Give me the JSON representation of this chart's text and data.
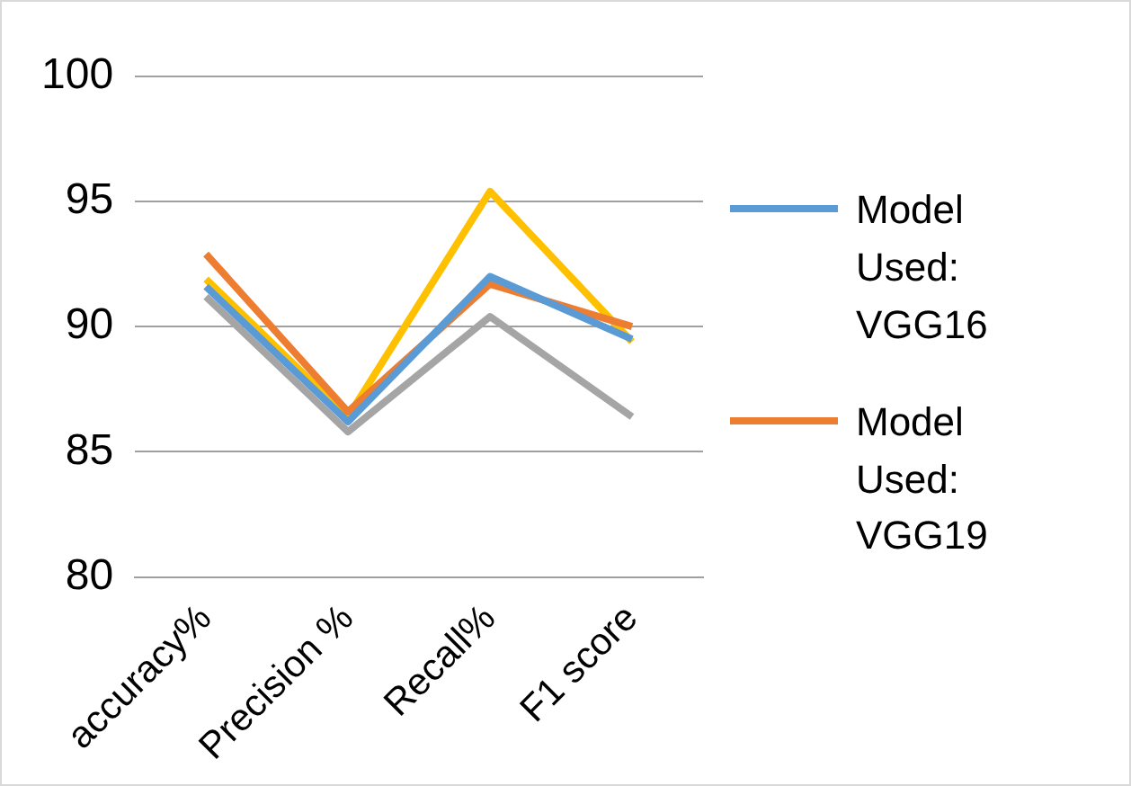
{
  "chart_data": {
    "type": "line",
    "categories": [
      "accuracy%",
      "Precision %",
      "Recall%",
      "F1 score"
    ],
    "series": [
      {
        "name": "Model Used: VGG16",
        "color": "#5b9bd5",
        "values": [
          91.6,
          86.2,
          92.0,
          89.5
        ]
      },
      {
        "name": "Model Used: VGG19",
        "color": "#ed7d31",
        "values": [
          92.9,
          86.6,
          91.7,
          90.0
        ]
      },
      {
        "color": "#a5a5a5",
        "values": [
          91.2,
          85.8,
          90.4,
          86.4
        ]
      },
      {
        "color": "#ffc000",
        "values": [
          91.9,
          86.4,
          95.4,
          89.4
        ]
      }
    ],
    "ylim": [
      80,
      100
    ],
    "yticks": [
      80,
      85,
      90,
      95,
      100
    ],
    "grid": "y",
    "legend": "right",
    "marker": "none",
    "line_style": "solid"
  }
}
